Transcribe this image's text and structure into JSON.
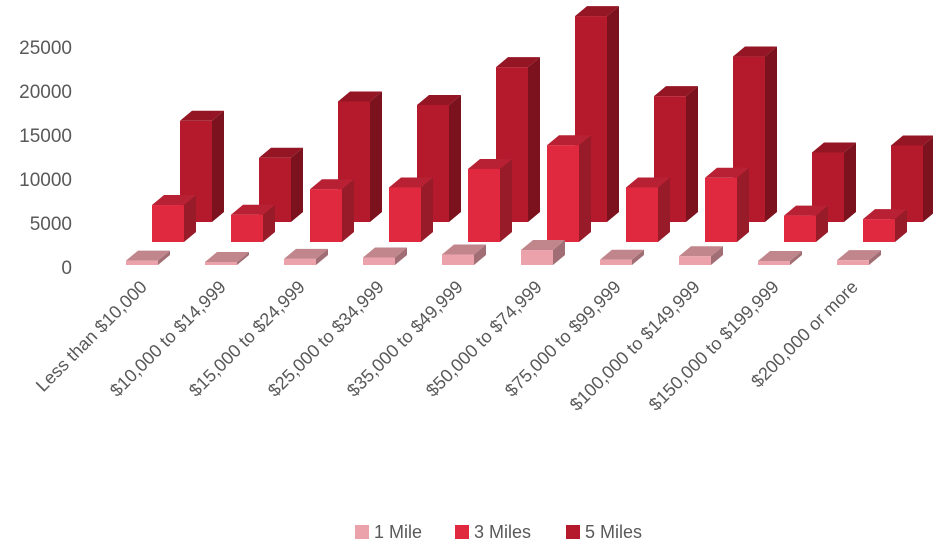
{
  "chart_data": {
    "type": "bar",
    "subtype": "3d-column",
    "categories": [
      "Less than $10,000",
      "$10,000 to $14,999",
      "$15,000 to $24,999",
      "$25,000 to $34,999",
      "$35,000 to $49,999",
      "$50,000 to $74,999",
      "$75,000 to $99,999",
      "$100,000 to $149,999",
      "$150,000 to $199,999",
      "$200,000 or more"
    ],
    "series": [
      {
        "name": "1 Mile",
        "color": "#eba2ab",
        "values": [
          500,
          150,
          700,
          850,
          1200,
          1700,
          600,
          1000,
          450,
          550
        ]
      },
      {
        "name": "3 Miles",
        "color": "#e0283e",
        "values": [
          4200,
          3100,
          6000,
          6200,
          8300,
          11000,
          6200,
          7300,
          3000,
          2600
        ]
      },
      {
        "name": "5 Miles",
        "color": "#b51a2c",
        "values": [
          11500,
          7300,
          13700,
          13300,
          17600,
          23400,
          14300,
          18800,
          7900,
          8700
        ]
      }
    ],
    "yticks": [
      0,
      5000,
      10000,
      15000,
      20000,
      25000
    ],
    "ylim": [
      0,
      25000
    ],
    "grid": false,
    "legend": "bottom-center"
  }
}
